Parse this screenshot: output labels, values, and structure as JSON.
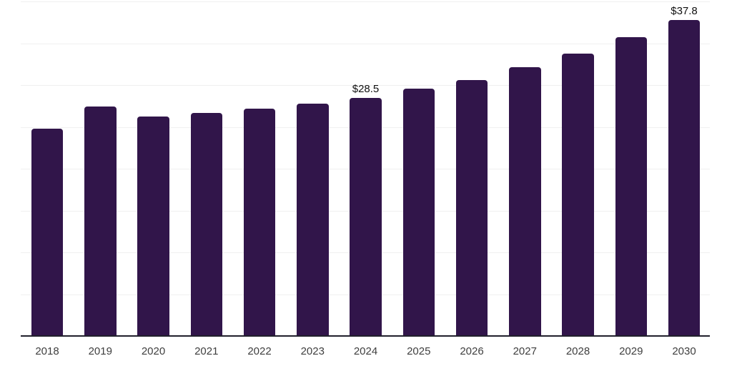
{
  "chart_data": {
    "type": "bar",
    "title": "",
    "xlabel": "",
    "ylabel": "",
    "categories": [
      "2018",
      "2019",
      "2020",
      "2021",
      "2022",
      "2023",
      "2024",
      "2025",
      "2026",
      "2027",
      "2028",
      "2029",
      "2030"
    ],
    "values": [
      24.8,
      27.4,
      26.2,
      26.7,
      27.2,
      27.8,
      28.5,
      29.6,
      30.6,
      32.1,
      33.8,
      35.7,
      37.8
    ],
    "data_labels": [
      {
        "category": "2024",
        "text": "$28.5"
      },
      {
        "category": "2030",
        "text": "$37.8"
      }
    ],
    "ylim": [
      0,
      40
    ],
    "grid_step": 5,
    "grid": "horizontal",
    "legend_position": "none",
    "y_axis_tick_labels": "none"
  },
  "style": {
    "bar_color": "#31154a",
    "grid_color": "#f0f0f0",
    "axis_color": "#21202c",
    "tick_label_color": "#3f3f3f",
    "data_label_color": "#101010",
    "background": "#ffffff"
  }
}
